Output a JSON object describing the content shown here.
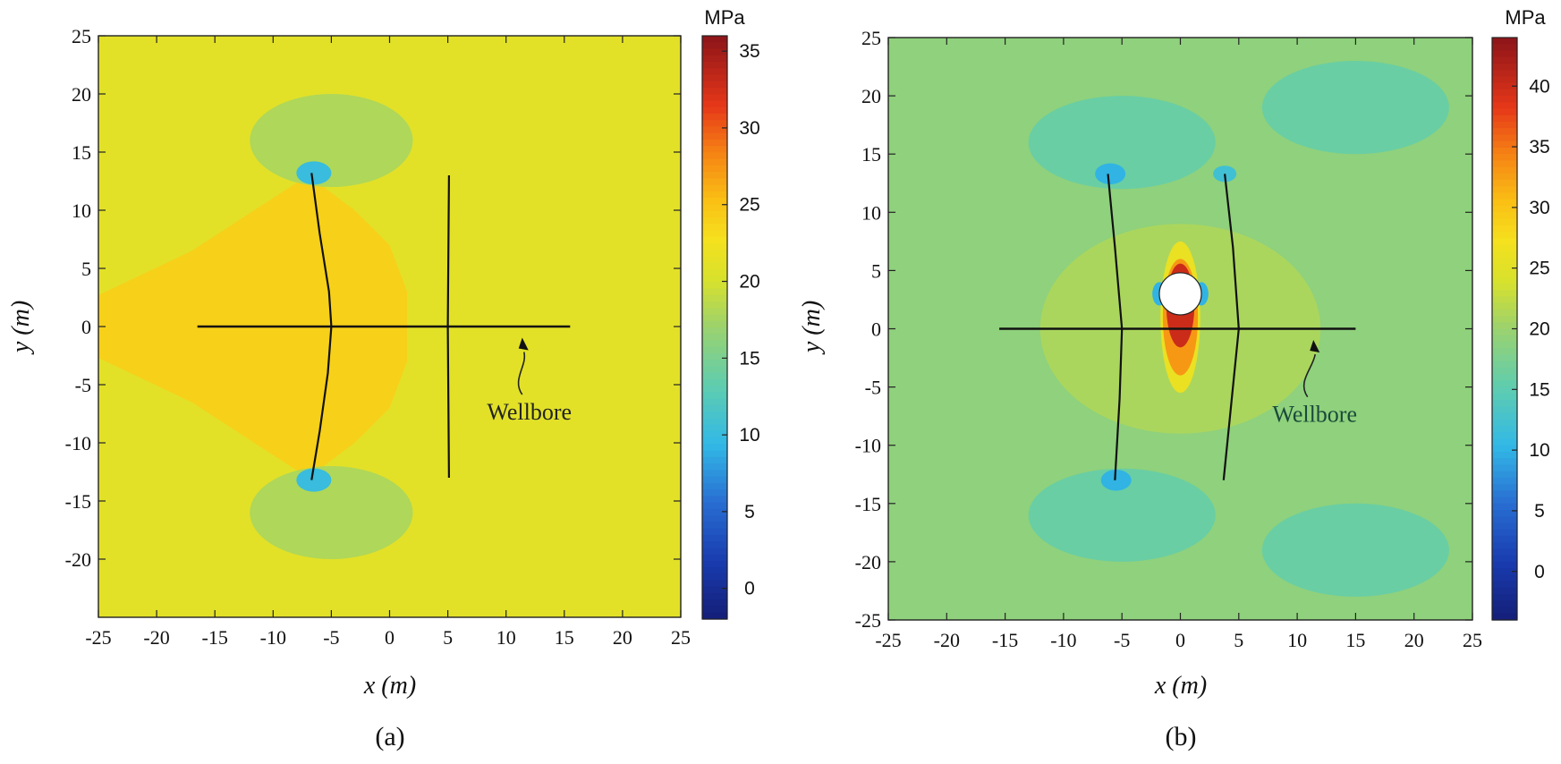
{
  "chart_data": [
    {
      "type": "heatmap",
      "panel_label": "(a)",
      "xlabel": "x (m)",
      "ylabel": "y (m)",
      "xlim": [
        -25,
        25
      ],
      "ylim": [
        -25,
        25
      ],
      "xticks": [
        -25,
        -20,
        -15,
        -10,
        -5,
        0,
        5,
        10,
        15,
        20,
        25
      ],
      "yticks": [
        -20,
        -15,
        -10,
        -5,
        0,
        5,
        10,
        15,
        20,
        25
      ],
      "colorbar": {
        "unit": "MPa",
        "min": -2,
        "max": 36,
        "ticks": [
          0,
          5,
          10,
          15,
          20,
          25,
          30,
          35
        ]
      },
      "background_value": 21,
      "regions": [
        {
          "kind": "stimulated-zone",
          "value": 24,
          "polygon": [
            [
              -25,
              2.7
            ],
            [
              -17,
              6.5
            ],
            [
              -7,
              13
            ],
            [
              -3,
              10
            ],
            [
              0,
              7
            ],
            [
              1.5,
              3
            ],
            [
              1.5,
              -3
            ],
            [
              0,
              -7
            ],
            [
              -3,
              -10
            ],
            [
              -7,
              -13
            ],
            [
              -17,
              -6.5
            ],
            [
              -25,
              -2.7
            ]
          ]
        },
        {
          "kind": "low-stress-lobe",
          "value": 18,
          "cx": -5,
          "cy": 16,
          "rx": 7,
          "ry": 4
        },
        {
          "kind": "low-stress-lobe",
          "value": 18,
          "cx": -5,
          "cy": -16,
          "rx": 7,
          "ry": 4
        },
        {
          "kind": "tip-concentration",
          "value": 10,
          "cx": -6.5,
          "cy": 13.2,
          "rx": 1.5,
          "ry": 1
        },
        {
          "kind": "tip-concentration",
          "value": 10,
          "cx": -6.5,
          "cy": -13.2,
          "rx": 1.5,
          "ry": 1
        }
      ],
      "fractures": [
        {
          "name": "fracture-1",
          "points": [
            [
              -6.7,
              13.2
            ],
            [
              -6,
              8
            ],
            [
              -5.2,
              3
            ],
            [
              -5,
              0
            ],
            [
              -5.3,
              -4
            ],
            [
              -6,
              -9
            ],
            [
              -6.7,
              -13.2
            ]
          ]
        },
        {
          "name": "fracture-2",
          "points": [
            [
              5.1,
              13
            ],
            [
              5,
              0
            ],
            [
              5.1,
              -13
            ]
          ]
        }
      ],
      "wellbore": {
        "x": [
          -16.5,
          15.5
        ],
        "y": 0
      },
      "annotation": {
        "text": "Wellbore",
        "x": 12,
        "y": -8,
        "color": "#222222",
        "arrow_to": [
          12,
          -0.5
        ]
      }
    },
    {
      "type": "heatmap",
      "panel_label": "(b)",
      "xlabel": "x (m)",
      "ylabel": "y (m)",
      "xlim": [
        -25,
        25
      ],
      "ylim": [
        -25,
        25
      ],
      "xticks": [
        -25,
        -20,
        -15,
        -10,
        -5,
        0,
        5,
        10,
        15,
        20,
        25
      ],
      "yticks": [
        -25,
        -20,
        -15,
        -10,
        -5,
        0,
        5,
        10,
        15,
        20,
        25
      ],
      "colorbar": {
        "unit": "MPa",
        "min": -4,
        "max": 44,
        "ticks": [
          0,
          5,
          10,
          15,
          20,
          25,
          30,
          35,
          40
        ]
      },
      "background_value": 19,
      "regions": [
        {
          "kind": "inner-band",
          "value": 21,
          "cx": 0,
          "cy": 0,
          "rx": 12,
          "ry": 9
        },
        {
          "kind": "low-stress-lobe",
          "value": 16,
          "cx": -5,
          "cy": 16,
          "rx": 8,
          "ry": 4
        },
        {
          "kind": "low-stress-lobe",
          "value": 16,
          "cx": -5,
          "cy": -16,
          "rx": 8,
          "ry": 4
        },
        {
          "kind": "low-stress-lobe",
          "value": 16,
          "cx": 15,
          "cy": 19,
          "rx": 8,
          "ry": 4
        },
        {
          "kind": "low-stress-lobe",
          "value": 16,
          "cx": 15,
          "cy": -19,
          "rx": 8,
          "ry": 4
        },
        {
          "kind": "hoop-stress",
          "value": 26,
          "cx": 0,
          "cy": 1,
          "rx": 1.7,
          "ry": 6.5
        },
        {
          "kind": "hoop-stress",
          "value": 33,
          "cx": 0,
          "cy": 1,
          "rx": 1.5,
          "ry": 5
        },
        {
          "kind": "hoop-stress",
          "value": 40,
          "cx": 0,
          "cy": 2,
          "rx": 1.2,
          "ry": 3.6
        },
        {
          "kind": "side-relief",
          "value": 10,
          "cx": -1.8,
          "cy": 3,
          "rx": 0.6,
          "ry": 1
        },
        {
          "kind": "side-relief",
          "value": 10,
          "cx": 1.8,
          "cy": 3,
          "rx": 0.6,
          "ry": 1
        },
        {
          "kind": "tip-concentration",
          "value": 10,
          "cx": -6,
          "cy": 13.3,
          "rx": 1.3,
          "ry": 0.9
        },
        {
          "kind": "tip-concentration",
          "value": 10,
          "cx": -5.5,
          "cy": -13,
          "rx": 1.3,
          "ry": 0.9
        },
        {
          "kind": "tip-concentration",
          "value": 12,
          "cx": 3.8,
          "cy": 13.3,
          "rx": 1,
          "ry": 0.7
        }
      ],
      "hole": {
        "cx": 0,
        "cy": 3,
        "r": 1.8
      },
      "fractures": [
        {
          "name": "fracture-1",
          "points": [
            [
              -6.2,
              13.3
            ],
            [
              -5.6,
              7
            ],
            [
              -5,
              0
            ],
            [
              -5.2,
              -6
            ],
            [
              -5.6,
              -13
            ]
          ]
        },
        {
          "name": "fracture-2",
          "points": [
            [
              3.8,
              13.3
            ],
            [
              4.5,
              7
            ],
            [
              5,
              0
            ],
            [
              4.3,
              -7
            ],
            [
              3.7,
              -13
            ]
          ]
        }
      ],
      "wellbore": {
        "x": [
          -15.5,
          15
        ],
        "y": 0
      },
      "annotation": {
        "text": "Wellbore",
        "x": 11.5,
        "y": -8,
        "color": "#1a4a3a",
        "arrow_to": [
          12,
          -0.5
        ]
      }
    }
  ]
}
